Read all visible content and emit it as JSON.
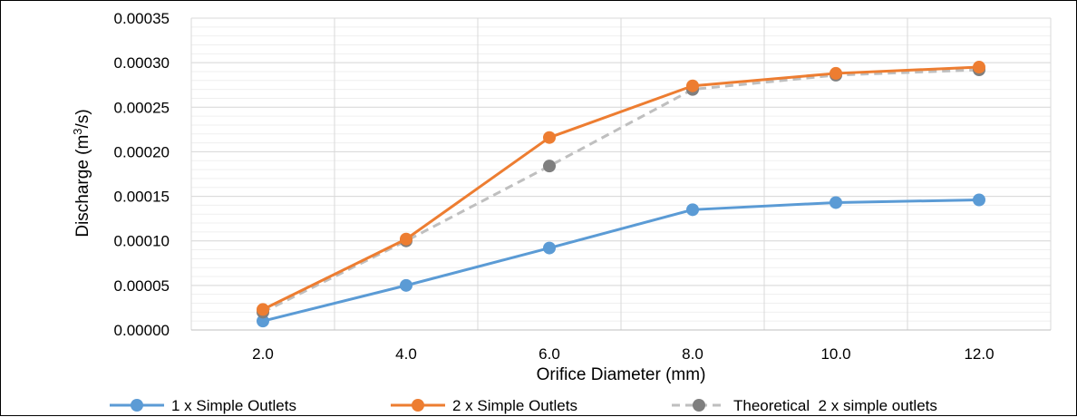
{
  "chart_data": {
    "type": "line",
    "xlabel": "Orifice Diameter (mm)",
    "ylabel": "Discharge (m³/s)",
    "ylabel_parts": {
      "before": "Discharge (m",
      "sup": "3",
      "after": "/s)"
    },
    "categories": [
      "2.0",
      "4.0",
      "6.0",
      "8.0",
      "10.0",
      "12.0"
    ],
    "ylim": [
      0,
      0.00035
    ],
    "yticks": [
      0,
      5e-05,
      0.0001,
      0.00015,
      0.0002,
      0.00025,
      0.0003,
      0.00035
    ],
    "ytick_labels": [
      "0.00000",
      "0.00005",
      "0.00010",
      "0.00015",
      "0.00020",
      "0.00025",
      "0.00030",
      "0.00035"
    ],
    "minor_gridlines": true,
    "grid": true,
    "legend_position": "bottom",
    "series": [
      {
        "name": "1 x Simple Outlets",
        "color": "#5B9BD5",
        "dashed": false,
        "values": [
          1e-05,
          5e-05,
          9.2e-05,
          0.000135,
          0.000143,
          0.000146
        ]
      },
      {
        "name": "2 x Simple Outlets",
        "color": "#ED7D31",
        "dashed": false,
        "values": [
          2.3e-05,
          0.000102,
          0.000216,
          0.000274,
          0.000288,
          0.000295
        ]
      },
      {
        "name": "Theoretical  2 x simple outlets",
        "color": "#BFBFBF",
        "marker_color": "#7F7F7F",
        "dashed": true,
        "values": [
          2e-05,
          0.0001,
          0.000184,
          0.00027,
          0.000286,
          0.000292
        ]
      }
    ]
  }
}
